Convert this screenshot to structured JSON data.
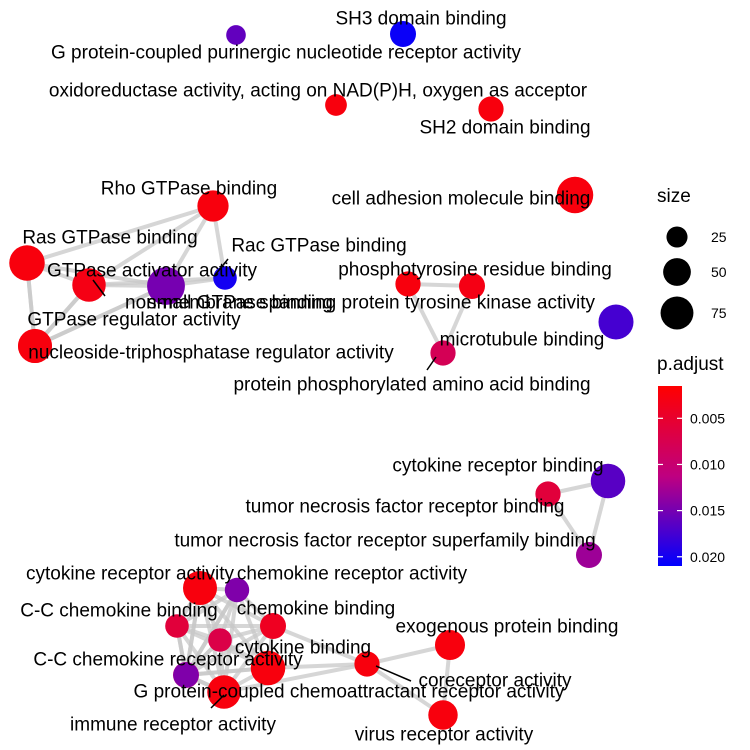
{
  "chart_data": {
    "type": "network",
    "nodes": [
      {
        "id": "sh3",
        "label": "SH3 domain binding",
        "padj": 0.0205,
        "size": 12
      },
      {
        "id": "gpcr_purine",
        "label": "G protein-coupled purinergic nucleotide receptor activity",
        "padj": 0.016,
        "size": 5
      },
      {
        "id": "oxido",
        "label": "oxidoreductase activity, acting on NAD(P)H, oxygen as acceptor",
        "padj": 0.0025,
        "size": 7
      },
      {
        "id": "sh2",
        "label": "SH2 domain binding",
        "padj": 0.0025,
        "size": 11
      },
      {
        "id": "rho",
        "label": "Rho GTPase binding",
        "padj": 0.0025,
        "size": 20
      },
      {
        "id": "cam",
        "label": "cell adhesion molecule binding",
        "padj": 0.0025,
        "size": 30
      },
      {
        "id": "ras",
        "label": "Ras GTPase binding",
        "padj": 0.0025,
        "size": 28
      },
      {
        "id": "rac",
        "label": "Rac GTPase binding",
        "padj": 0.02,
        "size": 9
      },
      {
        "id": "gtp_act",
        "label": "GTPase activator activity",
        "padj": 0.003,
        "size": 24
      },
      {
        "id": "small_gtp",
        "label": "small GTPase binding",
        "padj": 0.015,
        "size": 33
      },
      {
        "id": "gtp_reg",
        "label": "GTPase regulator activity",
        "padj": 0.0025,
        "size": 25
      },
      {
        "id": "ntp_reg",
        "label": "nucleoside-triphosphatase regulator activity",
        "padj": 0.0025,
        "size": 25
      },
      {
        "id": "nmrptk",
        "label": "non-membrane spanning protein tyrosine kinase activity",
        "padj": 0.0025,
        "size": 11
      },
      {
        "id": "ptyr",
        "label": "phosphotyrosine residue binding",
        "padj": 0.003,
        "size": 12
      },
      {
        "id": "mt",
        "label": "microtubule binding",
        "padj": 0.0175,
        "size": 27
      },
      {
        "id": "ppaa",
        "label": "protein phosphorylated amino acid binding",
        "padj": 0.008,
        "size": 11
      },
      {
        "id": "cytorb",
        "label": "cytokine receptor binding",
        "padj": 0.0165,
        "size": 26
      },
      {
        "id": "tnfrb",
        "label": "tumor necrosis factor receptor binding",
        "padj": 0.006,
        "size": 11
      },
      {
        "id": "tnfrsf",
        "label": "tumor necrosis factor receptor superfamily binding",
        "padj": 0.013,
        "size": 12
      },
      {
        "id": "cyto_ra",
        "label": "cytokine receptor activity",
        "padj": 0.0025,
        "size": 25
      },
      {
        "id": "chemo_ra",
        "label": "chemokine receptor activity",
        "padj": 0.0145,
        "size": 10
      },
      {
        "id": "cc_chemo_b",
        "label": "C-C chemokine binding",
        "padj": 0.006,
        "size": 9
      },
      {
        "id": "chemo_b",
        "label": "chemokine binding",
        "padj": 0.004,
        "size": 12
      },
      {
        "id": "cc_chemo_ra",
        "label": "C-C chemokine receptor activity",
        "padj": 0.012,
        "size": 12
      },
      {
        "id": "cyto_b",
        "label": "cytokine binding",
        "padj": 0.0025,
        "size": 26
      },
      {
        "id": "unlab_pink",
        "label": "",
        "padj": 0.007,
        "size": 9
      },
      {
        "id": "exog",
        "label": "exogenous protein binding",
        "padj": 0.0025,
        "size": 18
      },
      {
        "id": "corec",
        "label": "coreceptor activity",
        "padj": 0.0025,
        "size": 11
      },
      {
        "id": "gpcr_chemo",
        "label": "G protein-coupled chemoattractant receptor activity",
        "padj": 0.0145,
        "size": 11
      },
      {
        "id": "immune",
        "label": "immune receptor activity",
        "padj": 0.0025,
        "size": 24
      },
      {
        "id": "virus",
        "label": "virus receptor activity",
        "padj": 0.0025,
        "size": 17
      }
    ],
    "edges": [
      [
        "rho",
        "small_gtp"
      ],
      [
        "rho",
        "ras"
      ],
      [
        "rho",
        "gtp_act"
      ],
      [
        "rho",
        "rac"
      ],
      [
        "ras",
        "gtp_act"
      ],
      [
        "ras",
        "small_gtp"
      ],
      [
        "ras",
        "gtp_reg"
      ],
      [
        "gtp_act",
        "gtp_reg"
      ],
      [
        "gtp_act",
        "ntp_reg"
      ],
      [
        "gtp_act",
        "small_gtp"
      ],
      [
        "gtp_act",
        "rac"
      ],
      [
        "gtp_reg",
        "ntp_reg"
      ],
      [
        "gtp_reg",
        "small_gtp"
      ],
      [
        "ntp_reg",
        "small_gtp"
      ],
      [
        "small_gtp",
        "rac"
      ],
      [
        "ras",
        "ntp_reg"
      ],
      [
        "nmrptk",
        "ptyr"
      ],
      [
        "nmrptk",
        "ppaa"
      ],
      [
        "ptyr",
        "ppaa"
      ],
      [
        "cytorb",
        "tnfrb"
      ],
      [
        "cytorb",
        "tnfrsf"
      ],
      [
        "tnfrb",
        "tnfrsf"
      ],
      [
        "cyto_ra",
        "chemo_ra"
      ],
      [
        "cyto_ra",
        "cc_chemo_b"
      ],
      [
        "cyto_ra",
        "chemo_b"
      ],
      [
        "cyto_ra",
        "cc_chemo_ra"
      ],
      [
        "cyto_ra",
        "cyto_b"
      ],
      [
        "cyto_ra",
        "unlab_pink"
      ],
      [
        "cyto_ra",
        "immune"
      ],
      [
        "cyto_ra",
        "gpcr_chemo"
      ],
      [
        "chemo_ra",
        "cc_chemo_b"
      ],
      [
        "chemo_ra",
        "chemo_b"
      ],
      [
        "chemo_ra",
        "cc_chemo_ra"
      ],
      [
        "chemo_ra",
        "cyto_b"
      ],
      [
        "chemo_ra",
        "unlab_pink"
      ],
      [
        "chemo_ra",
        "immune"
      ],
      [
        "chemo_ra",
        "gpcr_chemo"
      ],
      [
        "cc_chemo_b",
        "chemo_b"
      ],
      [
        "cc_chemo_b",
        "cc_chemo_ra"
      ],
      [
        "cc_chemo_b",
        "cyto_b"
      ],
      [
        "cc_chemo_b",
        "unlab_pink"
      ],
      [
        "cc_chemo_b",
        "immune"
      ],
      [
        "cc_chemo_b",
        "gpcr_chemo"
      ],
      [
        "chemo_b",
        "cc_chemo_ra"
      ],
      [
        "chemo_b",
        "cyto_b"
      ],
      [
        "chemo_b",
        "unlab_pink"
      ],
      [
        "chemo_b",
        "immune"
      ],
      [
        "cc_chemo_ra",
        "cyto_b"
      ],
      [
        "cc_chemo_ra",
        "unlab_pink"
      ],
      [
        "cc_chemo_ra",
        "immune"
      ],
      [
        "cc_chemo_ra",
        "gpcr_chemo"
      ],
      [
        "cyto_b",
        "unlab_pink"
      ],
      [
        "cyto_b",
        "immune"
      ],
      [
        "cyto_b",
        "gpcr_chemo"
      ],
      [
        "cyto_b",
        "corec"
      ],
      [
        "unlab_pink",
        "immune"
      ],
      [
        "unlab_pink",
        "gpcr_chemo"
      ],
      [
        "immune",
        "gpcr_chemo"
      ],
      [
        "immune",
        "corec"
      ],
      [
        "chemo_b",
        "corec"
      ],
      [
        "corec",
        "exog"
      ],
      [
        "corec",
        "virus"
      ],
      [
        "exog",
        "virus"
      ]
    ],
    "size_legend": {
      "title": "size",
      "values": [
        25,
        50,
        75
      ]
    },
    "color_legend": {
      "title": "p.adjust",
      "ticks": [
        0.005,
        0.01,
        0.015,
        0.02
      ],
      "tick_labels": [
        "0.005",
        "0.010",
        "0.015",
        "0.020"
      ],
      "range": [
        0.0015,
        0.021
      ],
      "low_color": "#ff0000",
      "high_color": "#0000ff"
    },
    "edge_color": "#c8c8c8"
  }
}
